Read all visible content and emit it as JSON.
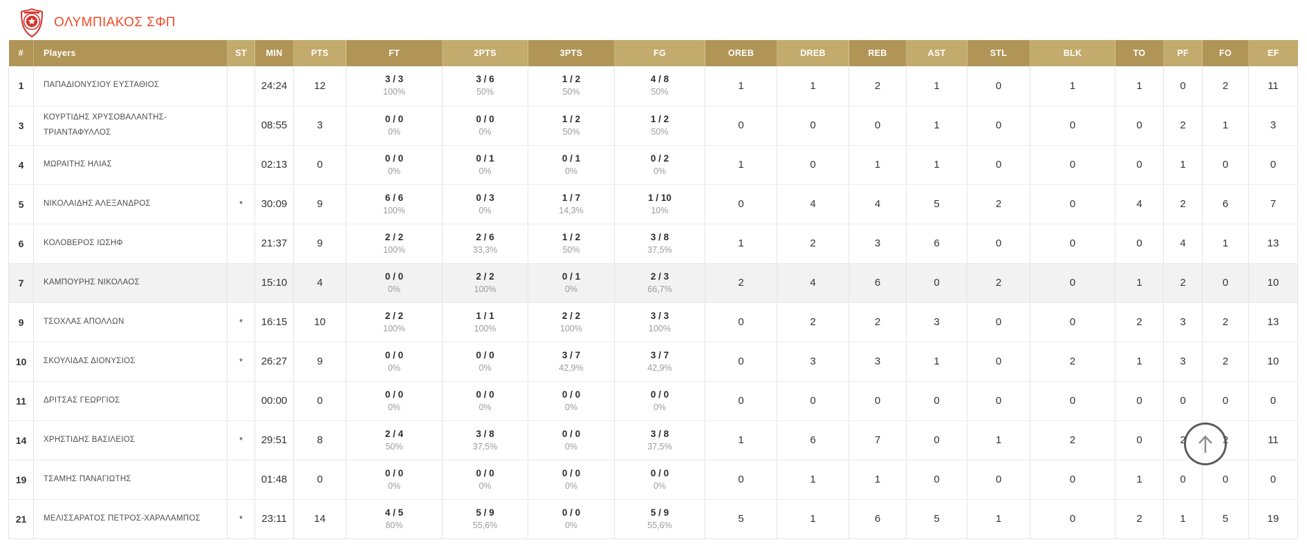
{
  "header": {
    "team_name": "ΟΛΥΜΠΙΑΚΟΣ ΣΦΠ"
  },
  "icons": {
    "team_logo": "olympiacos-crest",
    "scroll_to_top": "up-arrow"
  },
  "colors": {
    "title": "#ee4b28",
    "header_gold_dark": "#b09557",
    "header_gold_light": "#c2ab6c",
    "highlight_row": "#f2f2f2",
    "logo_red": "#d8322c"
  },
  "table": {
    "columns": [
      "#",
      "Players",
      "ST",
      "MIN",
      "PTS",
      "FT",
      "2PTS",
      "3PTS",
      "FG",
      "OREB",
      "DREB",
      "REB",
      "AST",
      "STL",
      "BLK",
      "TO",
      "PF",
      "FO",
      "EF"
    ],
    "players": [
      {
        "num": "1",
        "name": "ΠΑΠΑΔΙΟΝΥΣΙΟΥ ΕΥΣΤΑΘΙΟΣ",
        "st": "",
        "min": "24:24",
        "pts": "12",
        "ft": "3 / 3",
        "ft_pct": "100%",
        "pts2": "3 / 6",
        "pts2_pct": "50%",
        "pts3": "1 / 2",
        "pts3_pct": "50%",
        "fg": "4 / 8",
        "fg_pct": "50%",
        "oreb": "1",
        "dreb": "1",
        "reb": "2",
        "ast": "1",
        "stl": "0",
        "blk": "1",
        "to": "1",
        "pf": "0",
        "fo": "2",
        "ef": "11",
        "highlight": false
      },
      {
        "num": "3",
        "name": "ΚΟΥΡΤΙΔΗΣ ΧΡΥΣΟΒΑΛΑΝΤΗΣ-ΤΡΙΑΝΤΑΦΥΛΛΟΣ",
        "st": "",
        "min": "08:55",
        "pts": "3",
        "ft": "0 / 0",
        "ft_pct": "0%",
        "pts2": "0 / 0",
        "pts2_pct": "0%",
        "pts3": "1 / 2",
        "pts3_pct": "50%",
        "fg": "1 / 2",
        "fg_pct": "50%",
        "oreb": "0",
        "dreb": "0",
        "reb": "0",
        "ast": "1",
        "stl": "0",
        "blk": "0",
        "to": "0",
        "pf": "2",
        "fo": "1",
        "ef": "3",
        "highlight": false
      },
      {
        "num": "4",
        "name": "ΜΩΡΑΙΤΗΣ ΗΛΙΑΣ",
        "st": "",
        "min": "02:13",
        "pts": "0",
        "ft": "0 / 0",
        "ft_pct": "0%",
        "pts2": "0 / 1",
        "pts2_pct": "0%",
        "pts3": "0 / 1",
        "pts3_pct": "0%",
        "fg": "0 / 2",
        "fg_pct": "0%",
        "oreb": "1",
        "dreb": "0",
        "reb": "1",
        "ast": "1",
        "stl": "0",
        "blk": "0",
        "to": "0",
        "pf": "1",
        "fo": "0",
        "ef": "0",
        "highlight": false
      },
      {
        "num": "5",
        "name": "ΝΙΚΟΛΑΙΔΗΣ ΑΛΕΞΑΝΔΡΟΣ",
        "st": "*",
        "min": "30:09",
        "pts": "9",
        "ft": "6 / 6",
        "ft_pct": "100%",
        "pts2": "0 / 3",
        "pts2_pct": "0%",
        "pts3": "1 / 7",
        "pts3_pct": "14,3%",
        "fg": "1 / 10",
        "fg_pct": "10%",
        "oreb": "0",
        "dreb": "4",
        "reb": "4",
        "ast": "5",
        "stl": "2",
        "blk": "0",
        "to": "4",
        "pf": "2",
        "fo": "6",
        "ef": "7",
        "highlight": false
      },
      {
        "num": "6",
        "name": "ΚΟΛΟΒΕΡΟΣ ΙΩΣΗΦ",
        "st": "",
        "min": "21:37",
        "pts": "9",
        "ft": "2 / 2",
        "ft_pct": "100%",
        "pts2": "2 / 6",
        "pts2_pct": "33,3%",
        "pts3": "1 / 2",
        "pts3_pct": "50%",
        "fg": "3 / 8",
        "fg_pct": "37,5%",
        "oreb": "1",
        "dreb": "2",
        "reb": "3",
        "ast": "6",
        "stl": "0",
        "blk": "0",
        "to": "0",
        "pf": "4",
        "fo": "1",
        "ef": "13",
        "highlight": false
      },
      {
        "num": "7",
        "name": "ΚΑΜΠΟΥΡΗΣ ΝΙΚΟΛΑΟΣ",
        "st": "",
        "min": "15:10",
        "pts": "4",
        "ft": "0 / 0",
        "ft_pct": "0%",
        "pts2": "2 / 2",
        "pts2_pct": "100%",
        "pts3": "0 / 1",
        "pts3_pct": "0%",
        "fg": "2 / 3",
        "fg_pct": "66,7%",
        "oreb": "2",
        "dreb": "4",
        "reb": "6",
        "ast": "0",
        "stl": "2",
        "blk": "0",
        "to": "1",
        "pf": "2",
        "fo": "0",
        "ef": "10",
        "highlight": true
      },
      {
        "num": "9",
        "name": "ΤΣΟΧΛΑΣ ΑΠΟΛΛΩΝ",
        "st": "*",
        "min": "16:15",
        "pts": "10",
        "ft": "2 / 2",
        "ft_pct": "100%",
        "pts2": "1 / 1",
        "pts2_pct": "100%",
        "pts3": "2 / 2",
        "pts3_pct": "100%",
        "fg": "3 / 3",
        "fg_pct": "100%",
        "oreb": "0",
        "dreb": "2",
        "reb": "2",
        "ast": "3",
        "stl": "0",
        "blk": "0",
        "to": "2",
        "pf": "3",
        "fo": "2",
        "ef": "13",
        "highlight": false
      },
      {
        "num": "10",
        "name": "ΣΚΟΥΛΙΔΑΣ ΔΙΟΝΥΣΙΟΣ",
        "st": "*",
        "min": "26:27",
        "pts": "9",
        "ft": "0 / 0",
        "ft_pct": "0%",
        "pts2": "0 / 0",
        "pts2_pct": "0%",
        "pts3": "3 / 7",
        "pts3_pct": "42,9%",
        "fg": "3 / 7",
        "fg_pct": "42,9%",
        "oreb": "0",
        "dreb": "3",
        "reb": "3",
        "ast": "1",
        "stl": "0",
        "blk": "2",
        "to": "1",
        "pf": "3",
        "fo": "2",
        "ef": "10",
        "highlight": false
      },
      {
        "num": "11",
        "name": "ΔΡΙΤΣΑΣ ΓΕΩΡΓΙΟΣ",
        "st": "",
        "min": "00:00",
        "pts": "0",
        "ft": "0 / 0",
        "ft_pct": "0%",
        "pts2": "0 / 0",
        "pts2_pct": "0%",
        "pts3": "0 / 0",
        "pts3_pct": "0%",
        "fg": "0 / 0",
        "fg_pct": "0%",
        "oreb": "0",
        "dreb": "0",
        "reb": "0",
        "ast": "0",
        "stl": "0",
        "blk": "0",
        "to": "0",
        "pf": "0",
        "fo": "0",
        "ef": "0",
        "highlight": false
      },
      {
        "num": "14",
        "name": "ΧΡΗΣΤΙΔΗΣ ΒΑΣΙΛΕΙΟΣ",
        "st": "*",
        "min": "29:51",
        "pts": "8",
        "ft": "2 / 4",
        "ft_pct": "50%",
        "pts2": "3 / 8",
        "pts2_pct": "37,5%",
        "pts3": "0 / 0",
        "pts3_pct": "0%",
        "fg": "3 / 8",
        "fg_pct": "37,5%",
        "oreb": "1",
        "dreb": "6",
        "reb": "7",
        "ast": "0",
        "stl": "1",
        "blk": "2",
        "to": "0",
        "pf": "2",
        "fo": "2",
        "ef": "11",
        "highlight": false
      },
      {
        "num": "19",
        "name": "ΤΣΑΜΗΣ ΠΑΝΑΓΙΩΤΗΣ",
        "st": "",
        "min": "01:48",
        "pts": "0",
        "ft": "0 / 0",
        "ft_pct": "0%",
        "pts2": "0 / 0",
        "pts2_pct": "0%",
        "pts3": "0 / 0",
        "pts3_pct": "0%",
        "fg": "0 / 0",
        "fg_pct": "0%",
        "oreb": "0",
        "dreb": "1",
        "reb": "1",
        "ast": "0",
        "stl": "0",
        "blk": "0",
        "to": "1",
        "pf": "0",
        "fo": "0",
        "ef": "0",
        "highlight": false
      },
      {
        "num": "21",
        "name": "ΜΕΛΙΣΣΑΡΑΤΟΣ ΠΕΤΡΟΣ-ΧΑΡΑΛΑΜΠΟΣ",
        "st": "*",
        "min": "23:11",
        "pts": "14",
        "ft": "4 / 5",
        "ft_pct": "80%",
        "pts2": "5 / 9",
        "pts2_pct": "55,6%",
        "pts3": "0 / 0",
        "pts3_pct": "0%",
        "fg": "5 / 9",
        "fg_pct": "55,6%",
        "oreb": "5",
        "dreb": "1",
        "reb": "6",
        "ast": "5",
        "stl": "1",
        "blk": "0",
        "to": "2",
        "pf": "1",
        "fo": "5",
        "ef": "19",
        "highlight": false
      }
    ]
  }
}
